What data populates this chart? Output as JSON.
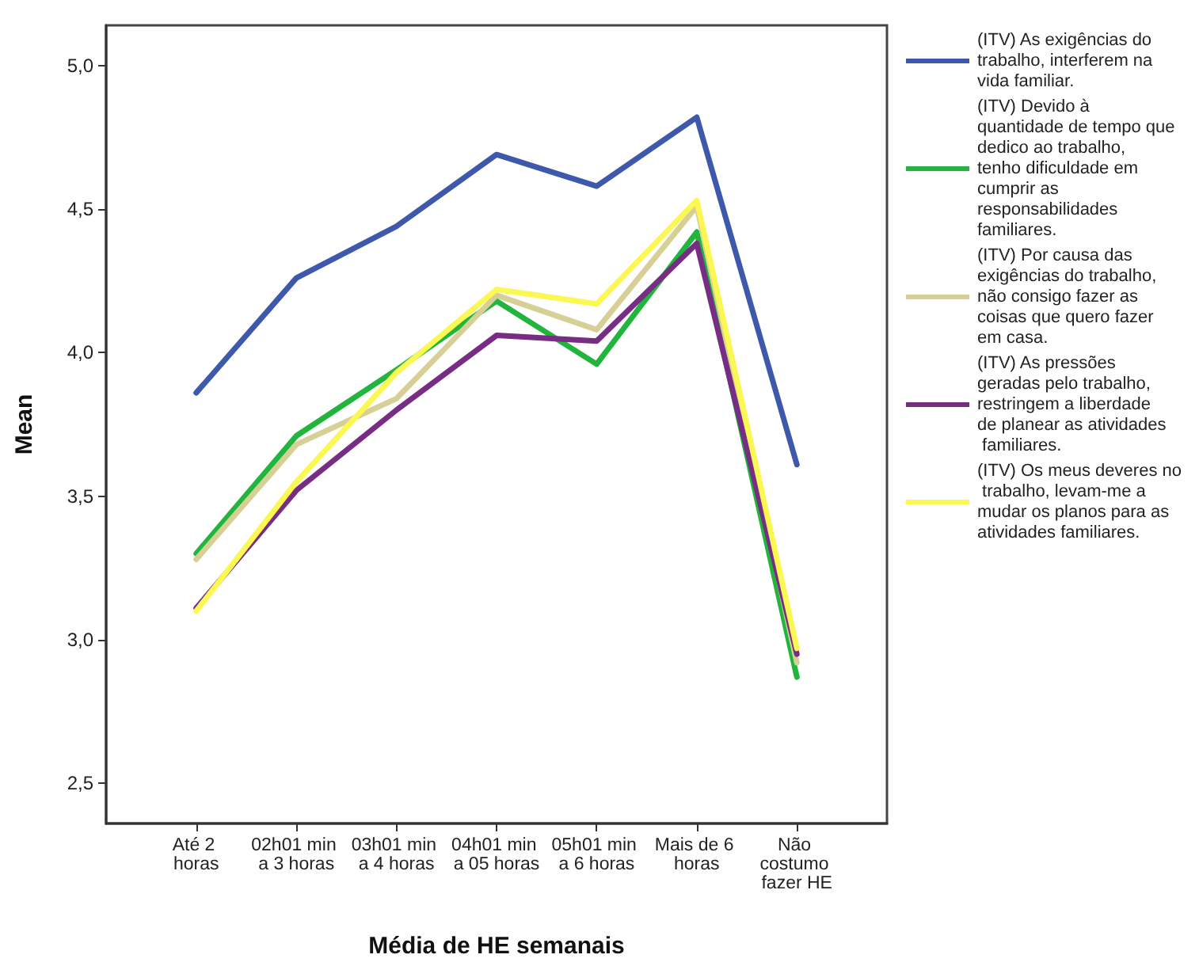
{
  "chart_data": {
    "type": "line",
    "xlabel": "Média de HE semanais",
    "ylabel": "Mean",
    "categories": [
      "Até 2 horas",
      "02h01 min a 3 horas",
      "03h01 min a 4 horas",
      "04h01 min a 05 horas",
      "05h01 min a 6 horas",
      "Mais de 6 horas",
      "Não costumo fazer HE"
    ],
    "series": [
      {
        "name": "(ITV) As exigências do trabalho, interferem na vida familiar.",
        "color": "#3e58ac",
        "values": [
          3.86,
          4.26,
          4.44,
          4.69,
          4.58,
          4.82,
          3.61
        ]
      },
      {
        "name": "(ITV) Devido à quantidade de tempo que dedico ao trabalho, tenho dificuldade em cumprir as responsabilidades familiares.",
        "color": "#21b53d",
        "values": [
          3.3,
          3.71,
          3.94,
          4.18,
          3.96,
          4.42,
          2.87
        ]
      },
      {
        "name": "(ITV) Por causa das exigências do trabalho, não consigo fazer as coisas que quero fazer em casa.",
        "color": "#d6d096",
        "values": [
          3.28,
          3.68,
          3.84,
          4.2,
          4.08,
          4.51,
          2.92
        ]
      },
      {
        "name": "(ITV) As pressões geradas pelo trabalho, restringem a liberdade de planear as atividades familiares.",
        "color": "#782d85",
        "values": [
          3.11,
          3.52,
          3.8,
          4.06,
          4.04,
          4.38,
          2.95
        ]
      },
      {
        "name": "(ITV) Os meus deveres no trabalho, levam-me a mudar os planos para as atividades familiares.",
        "color": "#fbf853",
        "values": [
          3.1,
          3.55,
          3.93,
          4.22,
          4.17,
          4.53,
          2.97
        ]
      }
    ],
    "ylim": [
      2.36,
      5.14
    ],
    "yticks": [
      {
        "value": 2.5,
        "label": "2,5"
      },
      {
        "value": 3.0,
        "label": "3,0"
      },
      {
        "value": 3.5,
        "label": "3,5"
      },
      {
        "value": 4.0,
        "label": "4,0"
      },
      {
        "value": 4.5,
        "label": "4,5"
      },
      {
        "value": 5.0,
        "label": "5,0"
      }
    ],
    "grid": false,
    "legend": "right",
    "marker": "none",
    "line_style": "solid"
  }
}
